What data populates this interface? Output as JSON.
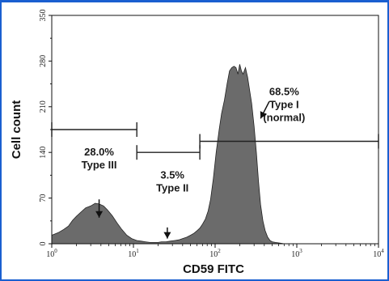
{
  "chart_data": {
    "type": "area",
    "title": "",
    "xlabel": "CD59 FITC",
    "ylabel": "Cell count",
    "x_scale": "log",
    "xlim": [
      1,
      10000
    ],
    "ylim": [
      0,
      350
    ],
    "x_ticks": [
      {
        "value": 1,
        "base": "10",
        "exp": "0"
      },
      {
        "value": 10,
        "base": "10",
        "exp": "1"
      },
      {
        "value": 100,
        "base": "10",
        "exp": "2"
      },
      {
        "value": 1000,
        "base": "10",
        "exp": "3"
      },
      {
        "value": 10000,
        "base": "10",
        "exp": "4"
      }
    ],
    "y_ticks": [
      0,
      70,
      140,
      210,
      280,
      350
    ],
    "grid": false,
    "series": [
      {
        "fill": "#6b6b6b",
        "x": [
          1,
          1.2,
          1.4,
          1.6,
          1.8,
          2,
          2.3,
          2.6,
          3,
          3.4,
          3.8,
          4.3,
          4.8,
          5.5,
          6.3,
          7.2,
          8.3,
          9.5,
          11,
          12.5,
          14,
          16,
          18,
          20,
          22,
          25,
          28,
          32,
          36,
          40,
          45,
          50,
          55,
          60,
          65,
          70,
          76,
          82,
          88,
          95,
          103,
          112,
          120,
          130,
          140,
          150,
          160,
          170,
          180,
          190,
          200,
          210,
          220,
          235,
          250,
          265,
          280,
          300,
          320,
          340,
          360,
          385,
          410,
          440,
          470,
          500,
          550,
          620,
          700,
          800,
          1000
        ],
        "y": [
          13,
          17,
          22,
          27,
          36,
          42,
          49,
          55,
          58,
          62,
          61,
          58,
          52,
          43,
          32,
          22,
          13,
          8,
          5,
          4,
          3,
          2,
          2,
          2,
          3,
          3,
          4,
          5,
          6,
          8,
          10,
          13,
          16,
          20,
          24,
          30,
          38,
          50,
          68,
          100,
          140,
          175,
          200,
          220,
          245,
          265,
          270,
          272,
          270,
          260,
          275,
          265,
          260,
          270,
          255,
          235,
          215,
          180,
          140,
          95,
          60,
          35,
          20,
          10,
          5,
          3,
          2,
          1,
          0,
          0,
          0
        ]
      }
    ],
    "gates": [
      {
        "x1": 1,
        "x2": 11,
        "y": 175
      },
      {
        "x1": 11,
        "x2": 65,
        "y": 140
      },
      {
        "x1": 65,
        "x2": 10000,
        "y": 157
      }
    ],
    "annotations": [
      {
        "lines": [
          "28.0%",
          "Type III"
        ],
        "text_x": 3.8,
        "text_y": 135,
        "arrow_from": [
          3.8,
          68
        ],
        "arrow_to": [
          3.8,
          40
        ]
      },
      {
        "lines": [
          "3.5%",
          "Type II"
        ],
        "text_x": 30,
        "text_y": 100,
        "arrow_from": [
          26,
          25
        ],
        "arrow_to": [
          26,
          8
        ]
      },
      {
        "lines": [
          "68.5%",
          "Type I",
          "(normal)"
        ],
        "text_x": 700,
        "text_y": 228,
        "arrow_from": [
          460,
          218
        ],
        "arrow_to": [
          360,
          192
        ]
      }
    ]
  }
}
